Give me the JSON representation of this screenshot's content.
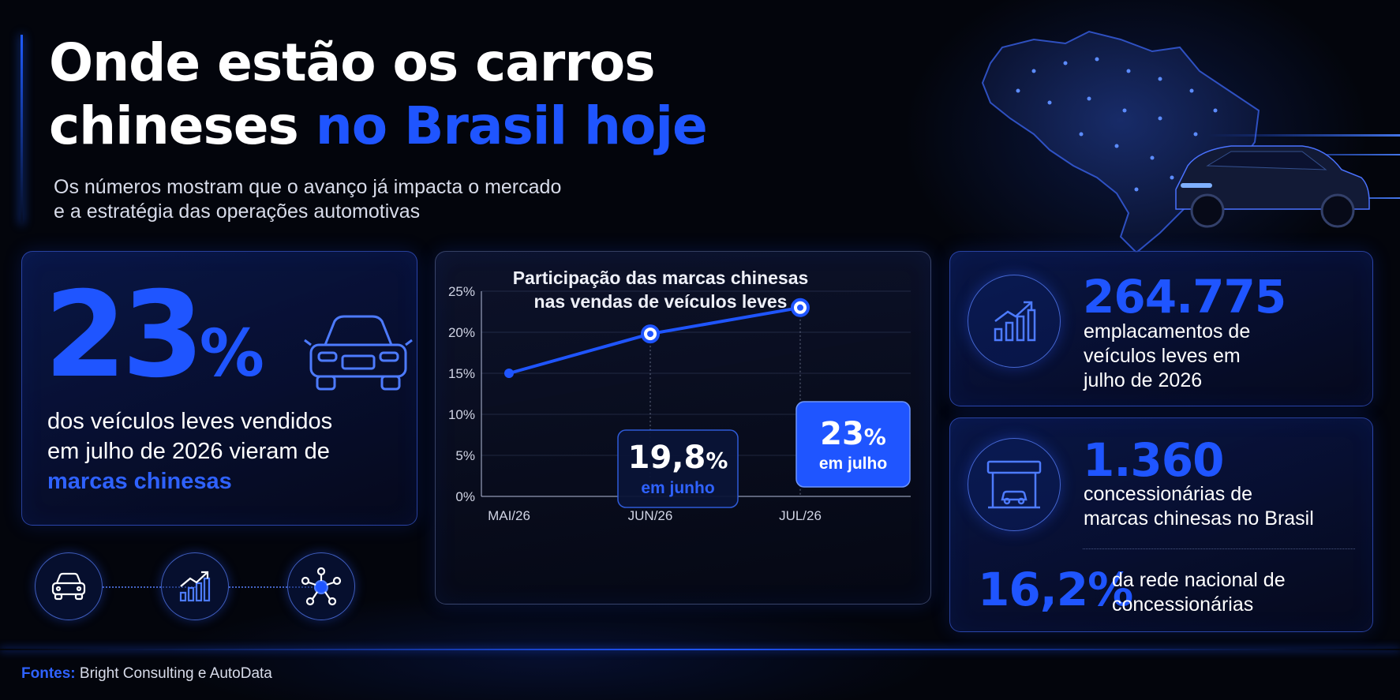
{
  "header": {
    "title_line1": "Onde estão os carros",
    "title_line2_white": "chineses",
    "title_line2_blue": "no Brasil hoje",
    "subtitle_line1": "Os números mostram que o avanço já impacta o mercado",
    "subtitle_line2": "e a estratégia das operações automotivas"
  },
  "highlight_card": {
    "value": "23",
    "unit": "%",
    "desc_line1": "dos veículos leves vendidos",
    "desc_line2": "em julho de 2026 vieram de",
    "desc_highlight": "marcas chinesas",
    "icon": "car-front-icon"
  },
  "icon_row": {
    "icons": [
      "car-front-icon",
      "growth-chart-icon",
      "network-icon"
    ]
  },
  "chart_data": {
    "type": "line",
    "title_line1": "Participação das marcas chinesas",
    "title_line2": "nas vendas de veículos leves",
    "categories": [
      "MAI/26",
      "JUN/26",
      "JUL/26"
    ],
    "values": [
      15,
      19.8,
      23
    ],
    "ylim": [
      0,
      25
    ],
    "y_ticks": [
      "0%",
      "5%",
      "10%",
      "15%",
      "20%",
      "25%"
    ],
    "y_unit": "%",
    "grid": true,
    "annotations": [
      {
        "value": "19,8",
        "unit": "%",
        "label": "em junho",
        "category": "JUN/26"
      },
      {
        "value": "23",
        "unit": "%",
        "label": "em julho",
        "category": "JUL/26"
      }
    ],
    "line_color": "#1f55ff"
  },
  "stats": {
    "registrations": {
      "value": "264.775",
      "label_line1": "emplacamentos de",
      "label_line2": "veículos leves em",
      "label_line3": "julho de 2026",
      "icon": "growth-chart-icon"
    },
    "dealerships": {
      "value": "1.360",
      "label_line1": "concessionárias de",
      "label_line2": "marcas chinesas no Brasil",
      "icon": "dealership-icon"
    },
    "network_share": {
      "value": "16,2",
      "unit": "%",
      "label_line1": "da rede nacional de",
      "label_line2": "concessionárias"
    }
  },
  "footer": {
    "sources_label": "Fontes:",
    "sources_text": "Bright Consulting e AutoData"
  },
  "colors": {
    "accent": "#1f55ff",
    "background": "#03050c"
  }
}
